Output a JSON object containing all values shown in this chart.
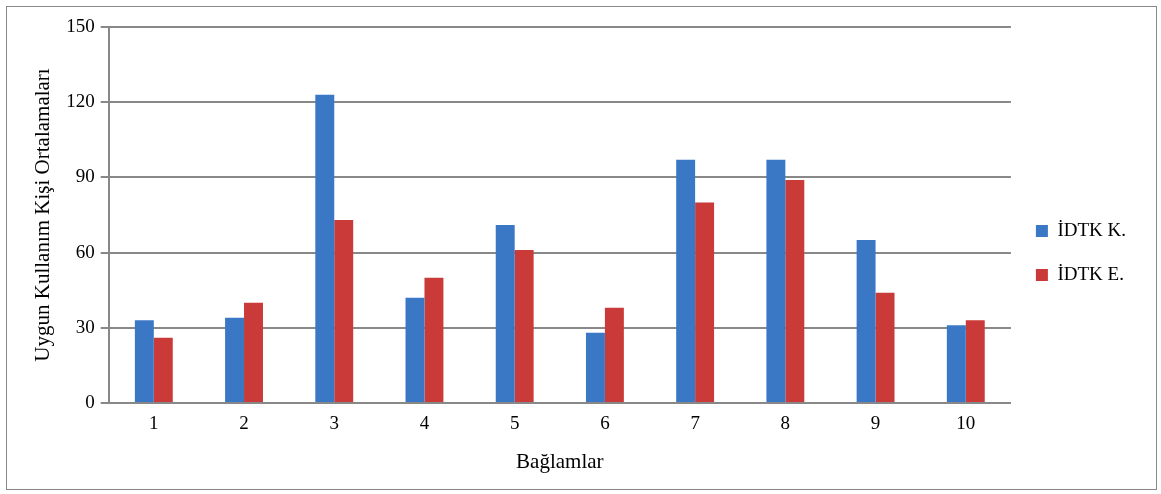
{
  "chart_data": {
    "type": "bar",
    "xlabel": "Bağlamlar",
    "ylabel": "Uygun Kullanım Kişi Ortalamaları",
    "categories": [
      "1",
      "2",
      "3",
      "4",
      "5",
      "6",
      "7",
      "8",
      "9",
      "10"
    ],
    "series": [
      {
        "name": "İDTK K.",
        "color": "#3a78c6",
        "values": [
          33,
          34,
          123,
          42,
          71,
          28,
          97,
          97,
          65,
          31
        ]
      },
      {
        "name": "İDTK E.",
        "color": "#c93a38",
        "values": [
          26,
          40,
          73,
          50,
          61,
          38,
          80,
          89,
          44,
          33
        ]
      }
    ],
    "ylim": [
      0,
      150
    ],
    "yticks": [
      0,
      30,
      60,
      90,
      120,
      150
    ],
    "grid": "y",
    "legend": "right"
  }
}
